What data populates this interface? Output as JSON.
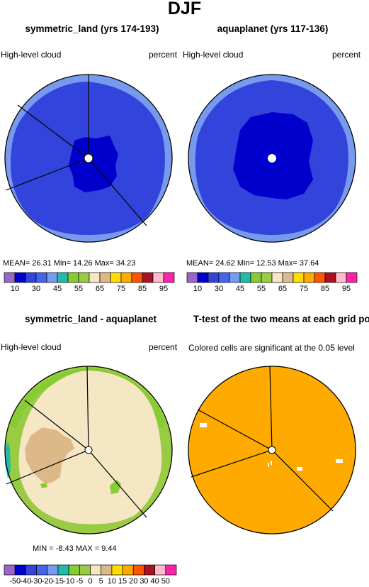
{
  "title": "DJF",
  "colors": {
    "c10": "#9966cc",
    "c20": "#0000cc",
    "c30": "#3344dd",
    "c40": "#4466ee",
    "c45": "#7799ee",
    "c50": "#22bbaa",
    "c55": "#88cc33",
    "c60": "#99cc44",
    "c65": "#f5e6c4",
    "c70": "#ddb888",
    "c75": "#ffdd00",
    "c80": "#ffaa00",
    "c85": "#ff5500",
    "c90": "#aa1122",
    "c95": "#ffbbcc",
    "c100": "#ff22aa"
  },
  "chart_data": [
    {
      "type": "heatmap",
      "title": "symmetric_land (yrs 174-193)",
      "left_label": "High-level cloud",
      "right_label": "percent",
      "stats": "MEAN=  26.31  Min=  14.26  Max=  34.23",
      "mean": 26.31,
      "min": 14.26,
      "max": 34.23,
      "colorbar_ticks": [
        "10",
        "30",
        "45",
        "55",
        "65",
        "75",
        "85",
        "95"
      ]
    },
    {
      "type": "heatmap",
      "title": "aquaplanet (yrs 117-136)",
      "left_label": "High-level cloud",
      "right_label": "percent",
      "stats": "MEAN=  24.62  Min=  12.53  Max=  37.64",
      "mean": 24.62,
      "min": 12.53,
      "max": 37.64,
      "colorbar_ticks": [
        "10",
        "30",
        "45",
        "55",
        "65",
        "75",
        "85",
        "95"
      ]
    },
    {
      "type": "heatmap",
      "title": "symmetric_land - aquaplanet",
      "left_label": "High-level cloud",
      "right_label": "percent",
      "stats": "MIN =   -8.43  MAX =    9.44",
      "min": -8.43,
      "max": 9.44,
      "colorbar_ticks": [
        "-50",
        "-40",
        "-30",
        "-20",
        "-15",
        "-10",
        "-5",
        "0",
        "5",
        "10",
        "15",
        "20",
        "30",
        "40",
        "50"
      ]
    },
    {
      "type": "heatmap",
      "title": "T-test of the two means at each grid point",
      "caption": "Colored cells are significant at the 0.05 level"
    }
  ],
  "diff_colors": [
    "#9966cc",
    "#0000cc",
    "#3344dd",
    "#4466ee",
    "#7799ee",
    "#22bbaa",
    "#88cc33",
    "#99cc44",
    "#f5e6c4",
    "#ddb888",
    "#ffdd00",
    "#ffaa00",
    "#ff5500",
    "#aa1122",
    "#ffbbcc",
    "#ff22aa"
  ]
}
